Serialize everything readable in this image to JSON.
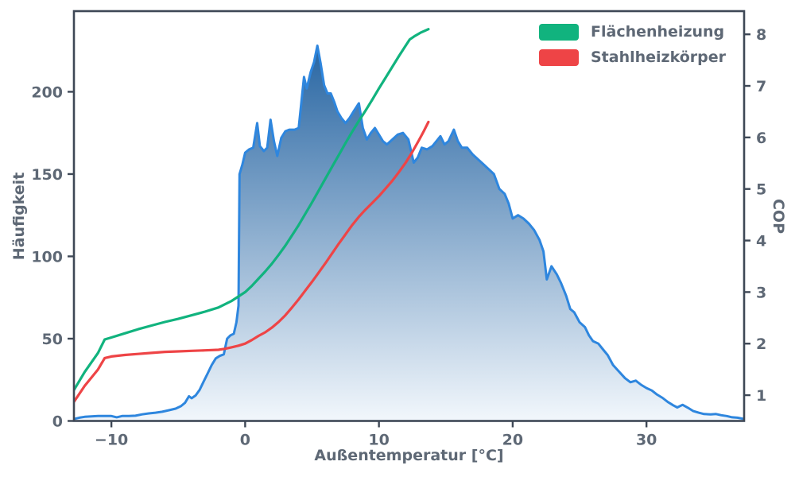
{
  "figure": {
    "background": "#ffffff",
    "spine_color": "#3e4856",
    "text_color": "#5e6875"
  },
  "chart_data": {
    "type": "area",
    "title": "",
    "xlabel": "Außentemperatur [°C]",
    "ylabel_left": "Häufigkeit",
    "ylabel_right": "COP",
    "grid": false,
    "legend_position": "upper right",
    "xlim": [
      -12.8,
      37.3
    ],
    "ylim_left": [
      0,
      249
    ],
    "ylim_right": [
      0.5,
      8.45
    ],
    "xticks": [
      {
        "v": -10,
        "label": "−10"
      },
      {
        "v": 0,
        "label": "0"
      },
      {
        "v": 10,
        "label": "10"
      },
      {
        "v": 20,
        "label": "20"
      },
      {
        "v": 30,
        "label": "30"
      }
    ],
    "yticks_left": [
      {
        "v": 0,
        "label": "0"
      },
      {
        "v": 50,
        "label": "50"
      },
      {
        "v": 100,
        "label": "100"
      },
      {
        "v": 150,
        "label": "150"
      },
      {
        "v": 200,
        "label": "200"
      }
    ],
    "yticks_right": [
      {
        "v": 1,
        "label": "1"
      },
      {
        "v": 2,
        "label": "2"
      },
      {
        "v": 3,
        "label": "3"
      },
      {
        "v": 4,
        "label": "4"
      },
      {
        "v": 5,
        "label": "5"
      },
      {
        "v": 6,
        "label": "6"
      },
      {
        "v": 7,
        "label": "7"
      },
      {
        "v": 8,
        "label": "8"
      }
    ],
    "histogram": {
      "name": "Häufigkeit",
      "axis": "left",
      "line_color": "#2e86de",
      "fill_gradient_top": "#15589a",
      "fill_gradient_bottom": "#f2f7fc",
      "points": [
        [
          -12.8,
          1.2
        ],
        [
          -12.4,
          2
        ],
        [
          -12,
          2.5
        ],
        [
          -11.5,
          2.8
        ],
        [
          -11,
          3
        ],
        [
          -10.5,
          3
        ],
        [
          -10,
          3
        ],
        [
          -9.6,
          2.2
        ],
        [
          -9.2,
          3
        ],
        [
          -8.7,
          3
        ],
        [
          -8.2,
          3.2
        ],
        [
          -7.7,
          4
        ],
        [
          -7.2,
          4.6
        ],
        [
          -6.7,
          5
        ],
        [
          -6.2,
          5.6
        ],
        [
          -5.7,
          6.5
        ],
        [
          -5.2,
          7.5
        ],
        [
          -4.8,
          9
        ],
        [
          -4.5,
          11
        ],
        [
          -4.2,
          15
        ],
        [
          -4,
          13.8
        ],
        [
          -3.7,
          15.5
        ],
        [
          -3.4,
          19
        ],
        [
          -3.1,
          24
        ],
        [
          -2.8,
          29
        ],
        [
          -2.5,
          34
        ],
        [
          -2.2,
          38
        ],
        [
          -1.9,
          39.5
        ],
        [
          -1.6,
          40.5
        ],
        [
          -1.35,
          50
        ],
        [
          -1.1,
          52
        ],
        [
          -0.85,
          53
        ],
        [
          -0.65,
          60
        ],
        [
          -0.5,
          70
        ],
        [
          -0.42,
          150
        ],
        [
          -0.2,
          156
        ],
        [
          0,
          163
        ],
        [
          0.3,
          165
        ],
        [
          0.6,
          166
        ],
        [
          0.9,
          181
        ],
        [
          1.1,
          167
        ],
        [
          1.4,
          164
        ],
        [
          1.65,
          166
        ],
        [
          1.9,
          183
        ],
        [
          2.15,
          170
        ],
        [
          2.4,
          161
        ],
        [
          2.7,
          172
        ],
        [
          3,
          176
        ],
        [
          3.3,
          177
        ],
        [
          3.7,
          177
        ],
        [
          4,
          178
        ],
        [
          4.4,
          209
        ],
        [
          4.6,
          202
        ],
        [
          4.9,
          212
        ],
        [
          5.15,
          218
        ],
        [
          5.4,
          228
        ],
        [
          5.65,
          217
        ],
        [
          5.9,
          204
        ],
        [
          6.15,
          199
        ],
        [
          6.4,
          199
        ],
        [
          6.65,
          194
        ],
        [
          6.9,
          188
        ],
        [
          7.2,
          184
        ],
        [
          7.5,
          181
        ],
        [
          7.8,
          184
        ],
        [
          8.1,
          188
        ],
        [
          8.5,
          193
        ],
        [
          8.8,
          178
        ],
        [
          9.1,
          171
        ],
        [
          9.4,
          175
        ],
        [
          9.7,
          178
        ],
        [
          10,
          174
        ],
        [
          10.3,
          170
        ],
        [
          10.6,
          168
        ],
        [
          11,
          171
        ],
        [
          11.4,
          174
        ],
        [
          11.8,
          175
        ],
        [
          12.2,
          171
        ],
        [
          12.6,
          157
        ],
        [
          12.9,
          160
        ],
        [
          13.2,
          166
        ],
        [
          13.6,
          165
        ],
        [
          14,
          167
        ],
        [
          14.3,
          170
        ],
        [
          14.6,
          173
        ],
        [
          14.9,
          168
        ],
        [
          15.2,
          170
        ],
        [
          15.6,
          177
        ],
        [
          15.9,
          170
        ],
        [
          16.2,
          166
        ],
        [
          16.6,
          166
        ],
        [
          17,
          162
        ],
        [
          17.4,
          159
        ],
        [
          17.8,
          156
        ],
        [
          18.2,
          153
        ],
        [
          18.6,
          150
        ],
        [
          19,
          141
        ],
        [
          19.4,
          138
        ],
        [
          19.7,
          132
        ],
        [
          20,
          123
        ],
        [
          20.4,
          125
        ],
        [
          20.8,
          123
        ],
        [
          21.2,
          120
        ],
        [
          21.6,
          116
        ],
        [
          22,
          110
        ],
        [
          22.3,
          103
        ],
        [
          22.55,
          86
        ],
        [
          22.9,
          94
        ],
        [
          23.3,
          89
        ],
        [
          23.6,
          84
        ],
        [
          24,
          76
        ],
        [
          24.3,
          68
        ],
        [
          24.6,
          66
        ],
        [
          25,
          60
        ],
        [
          25.4,
          57
        ],
        [
          25.7,
          52
        ],
        [
          26,
          48.5
        ],
        [
          26.4,
          47
        ],
        [
          26.8,
          43
        ],
        [
          27.1,
          40
        ],
        [
          27.5,
          34
        ],
        [
          28,
          29.5
        ],
        [
          28.4,
          26
        ],
        [
          28.8,
          23.5
        ],
        [
          29.2,
          24.5
        ],
        [
          29.6,
          22
        ],
        [
          30,
          20
        ],
        [
          30.4,
          18.5
        ],
        [
          30.8,
          16
        ],
        [
          31.2,
          14
        ],
        [
          31.6,
          11.5
        ],
        [
          32,
          9.5
        ],
        [
          32.3,
          8.2
        ],
        [
          32.7,
          9.8
        ],
        [
          33.1,
          8
        ],
        [
          33.5,
          6
        ],
        [
          33.9,
          5
        ],
        [
          34.3,
          4.2
        ],
        [
          34.8,
          4
        ],
        [
          35.2,
          4.2
        ],
        [
          35.6,
          3.5
        ],
        [
          36,
          3
        ],
        [
          36.4,
          2.2
        ],
        [
          36.8,
          2
        ],
        [
          37.3,
          1.2
        ]
      ]
    },
    "series": [
      {
        "name": "Flächenheizung",
        "axis": "right",
        "color": "#11b37e",
        "points": [
          [
            -12.8,
            1.1
          ],
          [
            -12,
            1.45
          ],
          [
            -11,
            1.82
          ],
          [
            -10.5,
            2.08
          ],
          [
            -10,
            2.12
          ],
          [
            -9,
            2.2
          ],
          [
            -8,
            2.28
          ],
          [
            -7,
            2.35
          ],
          [
            -6,
            2.42
          ],
          [
            -5,
            2.48
          ],
          [
            -4,
            2.55
          ],
          [
            -3,
            2.62
          ],
          [
            -2,
            2.7
          ],
          [
            -1,
            2.83
          ],
          [
            0,
            3
          ],
          [
            0.5,
            3.12
          ],
          [
            1,
            3.26
          ],
          [
            1.5,
            3.4
          ],
          [
            2,
            3.55
          ],
          [
            2.5,
            3.72
          ],
          [
            3,
            3.9
          ],
          [
            3.5,
            4.1
          ],
          [
            4,
            4.3
          ],
          [
            4.5,
            4.52
          ],
          [
            5,
            4.74
          ],
          [
            5.5,
            4.97
          ],
          [
            6,
            5.2
          ],
          [
            6.5,
            5.43
          ],
          [
            7,
            5.66
          ],
          [
            7.5,
            5.89
          ],
          [
            8,
            6.11
          ],
          [
            8.5,
            6.32
          ],
          [
            9,
            6.52
          ],
          [
            9.5,
            6.73
          ],
          [
            10,
            6.95
          ],
          [
            10.5,
            7.16
          ],
          [
            11,
            7.37
          ],
          [
            11.5,
            7.58
          ],
          [
            12,
            7.78
          ],
          [
            12.3,
            7.9
          ],
          [
            12.7,
            7.97
          ],
          [
            13.1,
            8.03
          ],
          [
            13.7,
            8.1
          ]
        ]
      },
      {
        "name": "Stahlheizkörper",
        "axis": "right",
        "color": "#ee4446",
        "points": [
          [
            -12.8,
            0.87
          ],
          [
            -12,
            1.18
          ],
          [
            -11,
            1.5
          ],
          [
            -10.5,
            1.72
          ],
          [
            -10,
            1.75
          ],
          [
            -9,
            1.78
          ],
          [
            -8,
            1.8
          ],
          [
            -7,
            1.82
          ],
          [
            -6,
            1.84
          ],
          [
            -5,
            1.85
          ],
          [
            -4,
            1.86
          ],
          [
            -3,
            1.87
          ],
          [
            -2,
            1.88
          ],
          [
            -1.5,
            1.9
          ],
          [
            -1,
            1.93
          ],
          [
            -0.5,
            1.96
          ],
          [
            0,
            2
          ],
          [
            0.5,
            2.07
          ],
          [
            1,
            2.15
          ],
          [
            1.5,
            2.22
          ],
          [
            2,
            2.31
          ],
          [
            2.5,
            2.42
          ],
          [
            3,
            2.55
          ],
          [
            3.5,
            2.7
          ],
          [
            4,
            2.86
          ],
          [
            4.5,
            3.03
          ],
          [
            5,
            3.2
          ],
          [
            5.5,
            3.38
          ],
          [
            6,
            3.56
          ],
          [
            6.5,
            3.75
          ],
          [
            7,
            3.94
          ],
          [
            7.5,
            4.12
          ],
          [
            8,
            4.3
          ],
          [
            8.5,
            4.46
          ],
          [
            9,
            4.6
          ],
          [
            9.5,
            4.73
          ],
          [
            10,
            4.86
          ],
          [
            10.5,
            5.01
          ],
          [
            11,
            5.16
          ],
          [
            11.5,
            5.33
          ],
          [
            12,
            5.51
          ],
          [
            12.5,
            5.72
          ],
          [
            13,
            5.95
          ],
          [
            13.35,
            6.12
          ],
          [
            13.7,
            6.3
          ]
        ]
      }
    ]
  }
}
